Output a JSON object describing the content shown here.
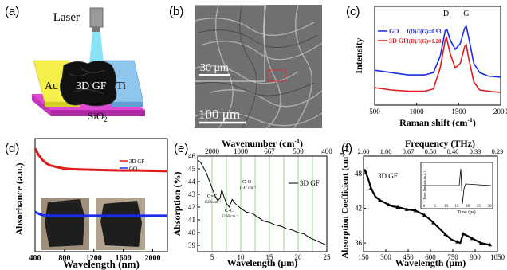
{
  "panels": {
    "a": {
      "label": "(a)",
      "laser": "Laser",
      "left_electrode": "Au",
      "right_electrode": "Ti",
      "film": "3D GF",
      "substrate": "SiO",
      "substrate_sub": "2",
      "colors": {
        "au": "#f5ef4a",
        "ti": "#8fc6ee",
        "sio2": "#e048d6",
        "laser_beam": "#55d8f0"
      }
    },
    "b": {
      "label": "(b)",
      "inset_scale": "30 μm",
      "main_scale": "100 μm"
    },
    "c": {
      "label": "(c)",
      "legend": [
        {
          "name": "GO",
          "value": "I(D)/I(G)=0.93",
          "color": "#1a2be8"
        },
        {
          "name": "3D GF",
          "value": "I(D)/I(G)=1.28",
          "color": "#e01b1b"
        }
      ],
      "peak_labels": [
        "D",
        "G"
      ]
    },
    "d": {
      "label": "(d)",
      "legend": [
        {
          "name": "3D GF",
          "color": "#e01b1b"
        },
        {
          "name": "GO",
          "color": "#1a2be8"
        }
      ]
    },
    "e": {
      "label": "(e)",
      "legend": "3D GF",
      "annotations": [
        {
          "text": "C=C",
          "sub": "1566 cm⁻¹"
        },
        {
          "text": "C-C",
          "sub": "1560 cm⁻¹"
        },
        {
          "text": "C-O",
          "sub": "1147 cm⁻¹"
        }
      ]
    },
    "f": {
      "label": "(f)",
      "legend": "3D GF",
      "inset_ylabel": "Time Domain (a.u.)",
      "inset_xlabel": "Time (ps)",
      "inset_ticks": [
        "0",
        "5",
        "10",
        "15",
        "20",
        "25",
        "30"
      ]
    }
  },
  "chart_data": [
    {
      "type": "line",
      "panel": "c",
      "xlabel": "Raman shift (cm⁻¹)",
      "ylabel": "Intensity",
      "xlim": [
        500,
        2000
      ],
      "xticks": [
        500,
        1000,
        1500,
        2000
      ],
      "series": [
        {
          "name": "GO",
          "color": "#1a2be8",
          "x": [
            500,
            700,
            900,
            1100,
            1200,
            1280,
            1340,
            1360,
            1400,
            1460,
            1520,
            1570,
            1590,
            1620,
            1680,
            1750,
            1850,
            2000
          ],
          "y": [
            0.4,
            0.38,
            0.36,
            0.36,
            0.38,
            0.52,
            0.74,
            0.75,
            0.66,
            0.58,
            0.63,
            0.76,
            0.78,
            0.68,
            0.46,
            0.38,
            0.35,
            0.34
          ]
        },
        {
          "name": "3D GF",
          "color": "#e01b1b",
          "x": [
            500,
            700,
            900,
            1100,
            1200,
            1280,
            1340,
            1355,
            1400,
            1460,
            1520,
            1570,
            1590,
            1620,
            1680,
            1750,
            1850,
            2000
          ],
          "y": [
            0.25,
            0.23,
            0.22,
            0.22,
            0.24,
            0.42,
            0.66,
            0.68,
            0.54,
            0.42,
            0.46,
            0.6,
            0.62,
            0.5,
            0.3,
            0.23,
            0.22,
            0.21
          ]
        }
      ]
    },
    {
      "type": "line",
      "panel": "d",
      "xlabel": "Wavelength (nm)",
      "ylabel": "Absorbance (a.u.)",
      "xlim": [
        400,
        2200
      ],
      "xticks": [
        400,
        800,
        1200,
        1600,
        2000
      ],
      "series": [
        {
          "name": "3D GF",
          "color": "#e01b1b",
          "x": [
            400,
            450,
            500,
            550,
            600,
            700,
            800,
            900,
            1000,
            1200,
            1400,
            1600,
            1800,
            2000,
            2200
          ],
          "y": [
            1.55,
            1.45,
            1.38,
            1.33,
            1.3,
            1.27,
            1.25,
            1.24,
            1.235,
            1.23,
            1.225,
            1.22,
            1.22,
            1.215,
            1.21
          ]
        },
        {
          "name": "GO",
          "color": "#1a2be8",
          "x": [
            400,
            450,
            500,
            600,
            800,
            1000,
            1200,
            1600,
            2000,
            2200
          ],
          "y": [
            0.6,
            0.57,
            0.55,
            0.54,
            0.54,
            0.54,
            0.54,
            0.54,
            0.54,
            0.54
          ]
        }
      ]
    },
    {
      "type": "line",
      "panel": "e",
      "xlabel": "Wavelength (μm)",
      "ylabel": "Absorption (%)",
      "top_xlabel": "Wavenumber (cm⁻¹)",
      "xlim": [
        2.5,
        25
      ],
      "ylim": [
        38.5,
        46
      ],
      "xticks": [
        5,
        10,
        15,
        20,
        25
      ],
      "yticks": [
        39,
        40,
        41,
        42,
        43,
        44,
        45,
        46
      ],
      "top_ticks": [
        {
          "label": "2000",
          "x": 5
        },
        {
          "label": "1000",
          "x": 10
        },
        {
          "label": "667",
          "x": 15
        },
        {
          "label": "500",
          "x": 20
        },
        {
          "label": "400",
          "x": 25
        }
      ],
      "gridlines_x": [
        5,
        7.5,
        10,
        12.5,
        15,
        17.5,
        20,
        22.5,
        25
      ],
      "series": [
        {
          "name": "3D GF",
          "color": "#000000",
          "x": [
            2.5,
            3,
            3.5,
            4,
            4.5,
            5,
            5.5,
            6,
            6.4,
            6.7,
            7,
            7.5,
            8,
            8.5,
            9,
            10,
            11,
            12,
            13,
            14,
            15,
            16,
            17,
            18,
            19,
            20,
            21,
            22,
            23,
            24,
            25
          ],
          "y": [
            45.7,
            45.5,
            45.1,
            44.7,
            44.1,
            43.5,
            42.9,
            42.5,
            42.7,
            43.4,
            42.9,
            42.3,
            42.0,
            42.6,
            42.3,
            41.9,
            41.6,
            41.5,
            41.2,
            40.9,
            40.8,
            40.6,
            40.5,
            40.3,
            40.2,
            40.0,
            39.9,
            39.6,
            39.4,
            39.2,
            39.0
          ]
        }
      ]
    },
    {
      "type": "line",
      "panel": "f",
      "xlabel": "Wavelength (μm)",
      "ylabel": "Absorption Coefficient (cm⁻¹)",
      "top_xlabel": "Frequency (THz)",
      "xlim": [
        150,
        1050
      ],
      "ylim": [
        34.5,
        51
      ],
      "xticks": [
        150,
        300,
        450,
        600,
        750,
        900,
        1050
      ],
      "yticks": [
        36,
        42,
        48
      ],
      "top_ticks": [
        {
          "label": "2.00",
          "x": 150
        },
        {
          "label": "1.00",
          "x": 300
        },
        {
          "label": "0.67",
          "x": 450
        },
        {
          "label": "0.50",
          "x": 600
        },
        {
          "label": "0.40",
          "x": 750
        },
        {
          "label": "0.33",
          "x": 900
        },
        {
          "label": "0.29",
          "x": 1050
        }
      ],
      "series": [
        {
          "name": "3D GF",
          "color": "#000000",
          "x": [
            160,
            180,
            200,
            230,
            260,
            290,
            320,
            350,
            380,
            410,
            440,
            470,
            500,
            530,
            560,
            590,
            620,
            660,
            700,
            740,
            780,
            800,
            820,
            850,
            880,
            910,
            940,
            970,
            1000
          ],
          "y": [
            48.5,
            47.2,
            45.5,
            44.0,
            43.4,
            43.0,
            42.6,
            42.3,
            42.2,
            42.0,
            41.8,
            41.7,
            41.6,
            41.2,
            40.8,
            40.2,
            39.5,
            38.5,
            37.5,
            36.6,
            36.2,
            36.0,
            37.6,
            37.2,
            36.8,
            36.4,
            36.0,
            35.8,
            35.7
          ]
        }
      ]
    }
  ]
}
